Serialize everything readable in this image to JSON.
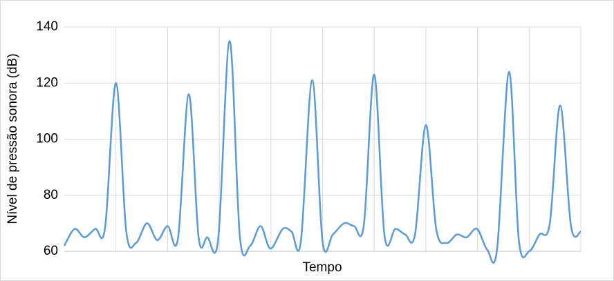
{
  "chart_data": {
    "type": "line",
    "y_label": "Nível de pressão sonora (dB)",
    "x_label": "Tempo",
    "x": [
      0,
      2,
      3.9,
      6,
      7.9,
      10,
      12,
      13.9,
      16,
      18,
      20,
      22,
      24.1,
      26,
      27.7,
      29.8,
      32,
      34,
      36,
      38,
      39.9,
      42.3,
      44,
      45.8,
      48,
      50,
      52,
      54.2,
      56.1,
      58,
      60,
      62,
      64.1,
      66,
      67.9,
      70,
      72,
      74,
      76,
      77.9,
      79.9,
      81.9,
      83.8,
      86.1,
      88,
      90,
      92,
      94,
      96,
      98.1,
      100
    ],
    "series": [
      {
        "color": "#5b9bd5",
        "values": [
          62,
          68,
          65,
          68,
          68.5,
          120,
          67,
          63,
          70,
          64,
          69,
          64.5,
          116,
          65,
          65,
          64.5,
          135,
          65,
          62,
          69,
          61,
          68,
          67,
          63.5,
          121,
          63.5,
          66,
          70,
          69,
          69.5,
          123,
          65.5,
          68,
          66,
          66,
          105,
          68,
          63,
          66,
          65,
          68,
          60.5,
          61,
          124,
          64,
          60,
          66,
          70,
          112,
          69,
          67
        ]
      }
    ],
    "xlim": [
      0,
      100
    ],
    "ylim": [
      60,
      140
    ],
    "yticks": [
      60,
      80,
      100,
      120,
      140
    ],
    "grid": true
  }
}
